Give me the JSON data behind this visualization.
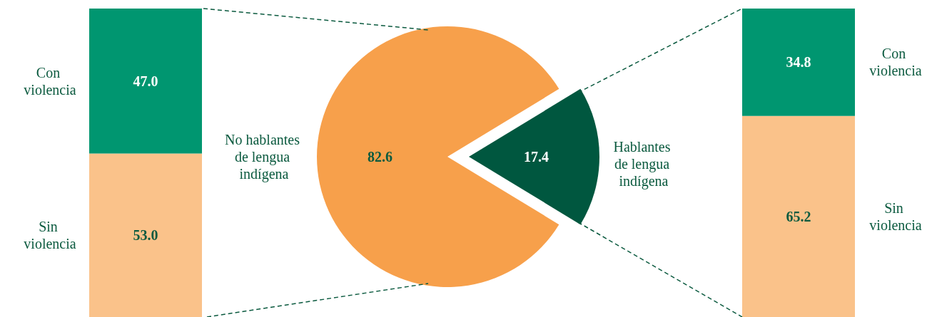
{
  "chart_data": [
    {
      "type": "bar",
      "stacked": true,
      "categories": [
        null
      ],
      "legend": false,
      "series": [
        {
          "name": "Sin violencia",
          "color": "#fac28a",
          "values": [
            53.0
          ],
          "value_labels": [
            "53.0"
          ]
        },
        {
          "name": "Con violencia",
          "color": "#009670",
          "values": [
            47.0
          ],
          "value_labels": [
            "47.0"
          ]
        }
      ]
    },
    {
      "type": "pie",
      "categories": [
        "No hablantes de lengua indígena",
        "Hablantes de lengua indígena"
      ],
      "values": [
        82.6,
        17.4
      ],
      "colors": [
        "#f7a04b",
        "#00573f"
      ],
      "data_labels": true,
      "legend": false
    },
    {
      "type": "bar",
      "stacked": true,
      "categories": [
        null
      ],
      "legend": false,
      "series": [
        {
          "name": "Sin violencia",
          "color": "#fac28a",
          "values": [
            65.2
          ],
          "value_labels": [
            "65.2"
          ]
        },
        {
          "name": "Con violencia",
          "color": "#009670",
          "values": [
            34.8
          ],
          "value_labels": [
            "34.8"
          ]
        }
      ]
    }
  ]
}
